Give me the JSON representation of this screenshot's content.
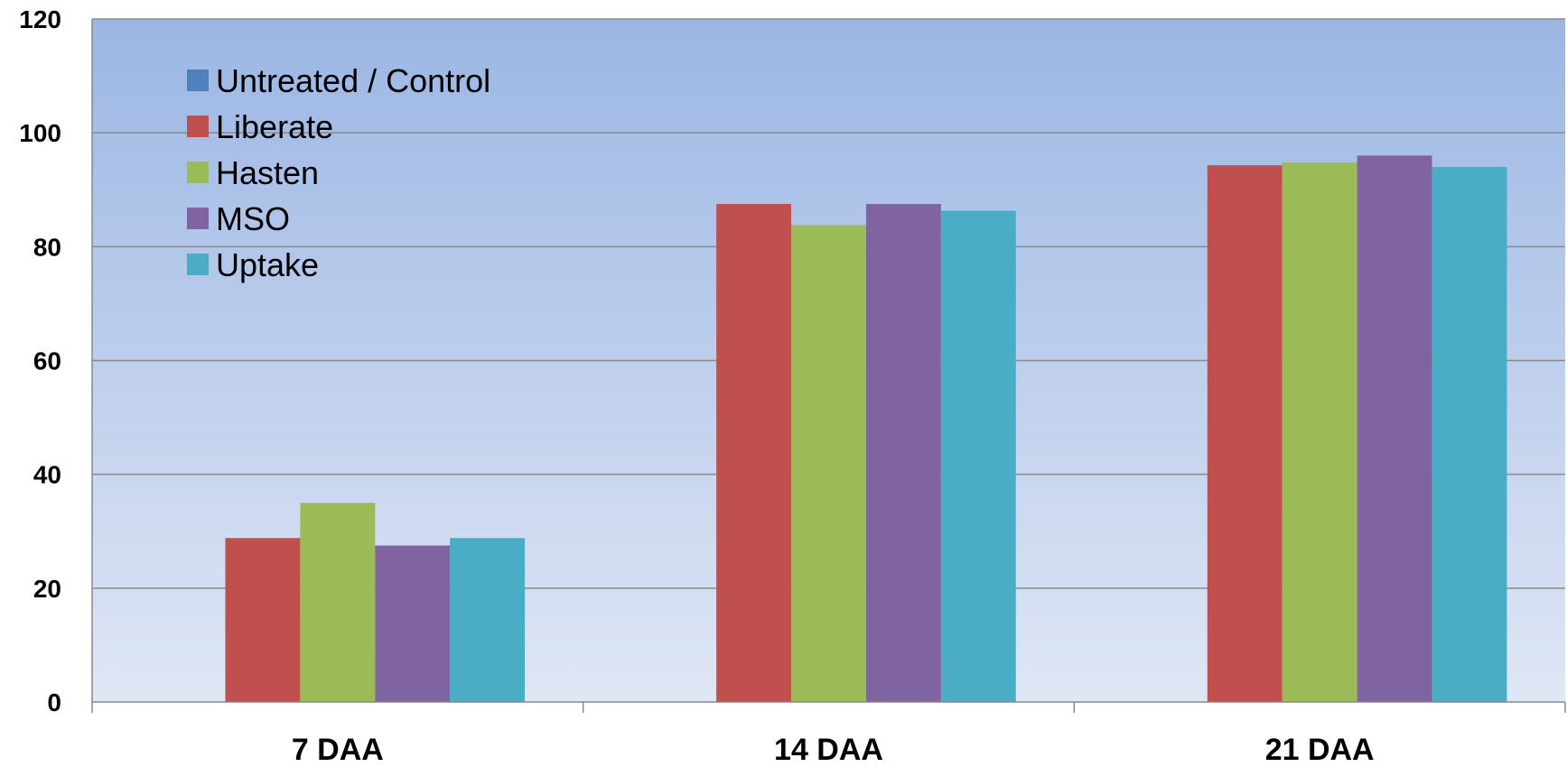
{
  "chart_data": {
    "type": "bar",
    "title": "",
    "xlabel": "",
    "ylabel": "",
    "categories": [
      "7 DAA",
      "14 DAA",
      "21 DAA"
    ],
    "ylim": [
      0,
      120
    ],
    "yticks": [
      0,
      20,
      40,
      60,
      80,
      100,
      120
    ],
    "grid": true,
    "legend_position": "top-left",
    "series": [
      {
        "name": "Untreated / Control",
        "color": "#4F81BD",
        "values": [
          0,
          0,
          0
        ]
      },
      {
        "name": "Liberate",
        "color": "#C0504D",
        "values": [
          28.8,
          87.5,
          94.3
        ]
      },
      {
        "name": "Hasten",
        "color": "#9BBB59",
        "values": [
          35.0,
          83.8,
          94.8
        ]
      },
      {
        "name": "MSO",
        "color": "#8064A2",
        "values": [
          27.5,
          87.5,
          96.0
        ]
      },
      {
        "name": "Uptake",
        "color": "#4BACC6",
        "values": [
          28.8,
          86.3,
          94.0
        ]
      }
    ]
  }
}
